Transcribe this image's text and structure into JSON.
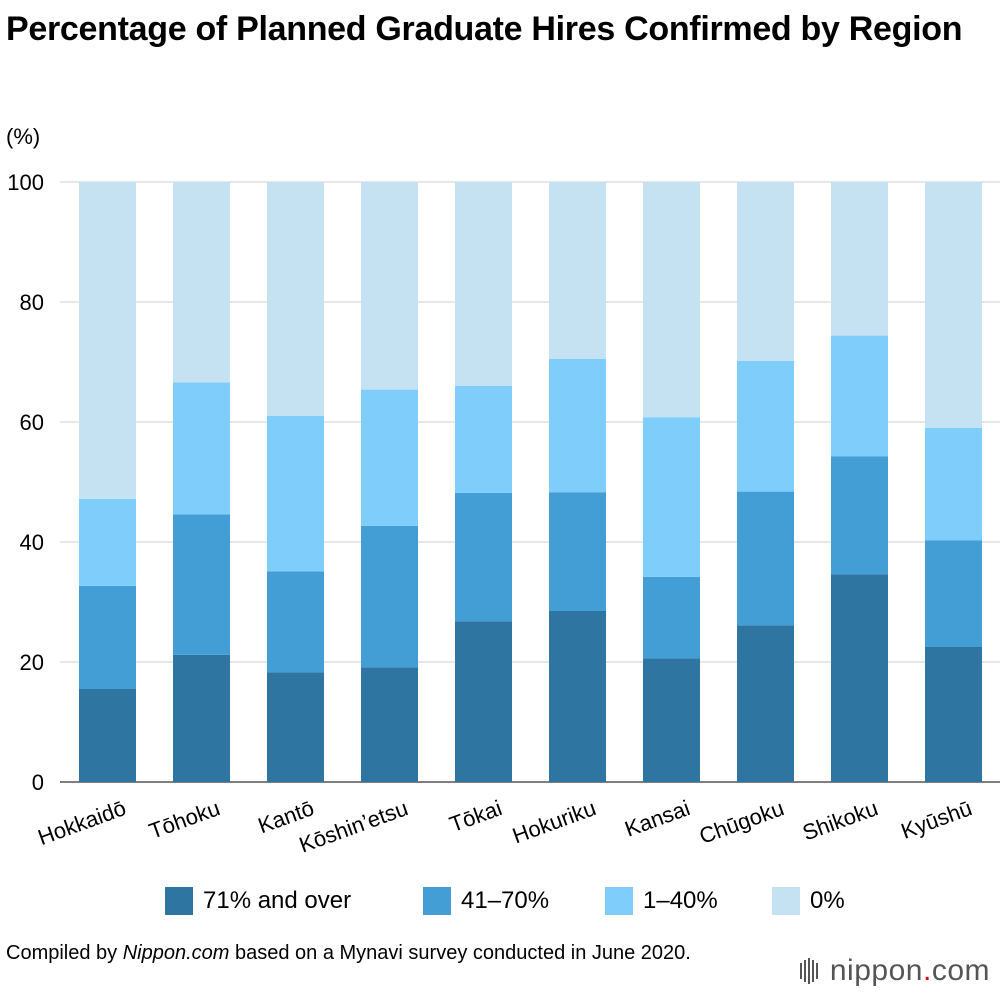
{
  "title": "Percentage of Planned Graduate Hires Confirmed by Region",
  "unit_label": "(%)",
  "legend": [
    {
      "label": "71% and over",
      "color": "#2e75a1"
    },
    {
      "label": "41–70%",
      "color": "#449ed6"
    },
    {
      "label": "1–40%",
      "color": "#7ecdfb"
    },
    {
      "label": "0%",
      "color": "#c5e2f3"
    }
  ],
  "footer": {
    "prefix": "Compiled by ",
    "source": "Nippon.com",
    "suffix": " based on a Mynavi survey conducted in June 2020."
  },
  "logo": {
    "text": "nippon",
    "dot": ".",
    "suffix": "com"
  },
  "chart_data": {
    "type": "bar",
    "stacked": true,
    "title": "Percentage of Planned Graduate Hires Confirmed by Region",
    "ylabel": "(%)",
    "xlabel": "",
    "ylim": [
      0,
      100
    ],
    "yticks": [
      0,
      20,
      40,
      60,
      80,
      100
    ],
    "grid": true,
    "legend_position": "bottom",
    "categories": [
      "Hokkaidō",
      "Tōhoku",
      "Kantō",
      "Kōshin’etsu",
      "Tōkai",
      "Hokuriku",
      "Kansai",
      "Chūgoku",
      "Shikoku",
      "Kyūshū"
    ],
    "series": [
      {
        "name": "71% and over",
        "color": "#2e75a1",
        "values": [
          15.5,
          21.2,
          18.3,
          19.1,
          26.8,
          28.5,
          20.6,
          26.1,
          34.6,
          22.5
        ]
      },
      {
        "name": "41–70%",
        "color": "#449ed6",
        "values": [
          17.2,
          23.4,
          16.8,
          23.6,
          21.4,
          19.8,
          13.6,
          22.3,
          19.7,
          17.8
        ]
      },
      {
        "name": "1–40%",
        "color": "#7ecdfb",
        "values": [
          14.5,
          22.0,
          25.9,
          22.7,
          17.8,
          22.2,
          26.6,
          21.8,
          20.1,
          18.7
        ]
      },
      {
        "name": "0%",
        "color": "#c5e2f3",
        "values": [
          52.8,
          33.4,
          39.0,
          34.6,
          34.0,
          29.5,
          39.2,
          29.8,
          25.6,
          41.0
        ]
      }
    ]
  }
}
